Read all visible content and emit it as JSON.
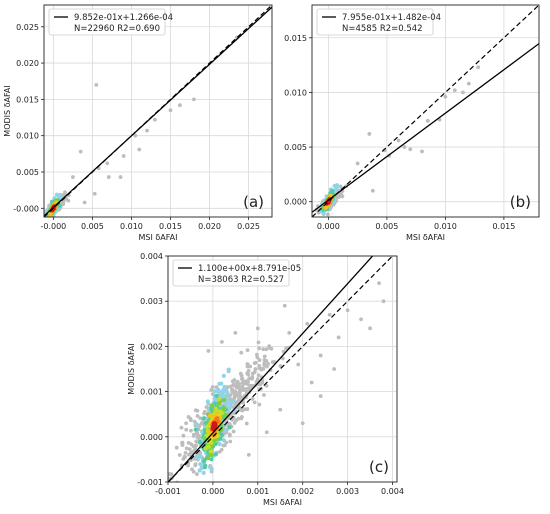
{
  "chart_data": [
    {
      "type": "scatter",
      "panel_label": "(a)",
      "xlabel": "MSI δAFAI",
      "ylabel": "MODIS δAFAI",
      "xlim": [
        -0.0012,
        0.028
      ],
      "ylim": [
        -0.0012,
        0.028
      ],
      "xticks": [
        "-0.000",
        "0.005",
        "0.010",
        "0.015",
        "0.020",
        "0.025"
      ],
      "xtick_values": [
        0.0,
        0.005,
        0.01,
        0.015,
        0.02,
        0.025
      ],
      "yticks": [
        "-0.000",
        "0.005",
        "0.010",
        "0.015",
        "0.020",
        "0.025"
      ],
      "ytick_values": [
        0.0,
        0.005,
        0.01,
        0.015,
        0.02,
        0.025
      ],
      "grid": true,
      "legend": {
        "position": "top-left",
        "line1": "9.852e-01x+1.266e-04",
        "line2": "N=22960  R2=0.690"
      },
      "fit": {
        "slope": 0.9852,
        "intercept": 0.0001266
      },
      "one_to_one": true,
      "sample_points": [
        [
          0.0053,
          0.002
        ],
        [
          0.0058,
          0.0055
        ],
        [
          0.0069,
          0.0062
        ],
        [
          0.0071,
          0.0043
        ],
        [
          0.0086,
          0.0043
        ],
        [
          0.009,
          0.0072
        ],
        [
          0.0105,
          0.01
        ],
        [
          0.011,
          0.0081
        ],
        [
          0.012,
          0.0107
        ],
        [
          0.013,
          0.0122
        ],
        [
          0.015,
          0.0135
        ],
        [
          0.0162,
          0.0142
        ],
        [
          0.018,
          0.015
        ],
        [
          0.0235,
          0.0235
        ],
        [
          0.0055,
          0.017
        ],
        [
          0.0035,
          0.0078
        ],
        [
          0.0025,
          0.0043
        ],
        [
          0.004,
          0.0008
        ]
      ]
    },
    {
      "type": "scatter",
      "panel_label": "(b)",
      "xlabel": "MSI δAFAI",
      "ylabel": "",
      "xlim": [
        -0.0014,
        0.018
      ],
      "ylim": [
        -0.0014,
        0.018
      ],
      "xticks": [
        "0.000",
        "0.005",
        "0.010",
        "0.015"
      ],
      "xtick_values": [
        0.0,
        0.005,
        0.01,
        0.015
      ],
      "yticks": [
        "0.000",
        "0.005",
        "0.010",
        "0.015"
      ],
      "ytick_values": [
        0.0,
        0.005,
        0.01,
        0.015
      ],
      "grid": true,
      "legend": {
        "position": "top-left",
        "line1": "7.955e-01x+1.482e-04",
        "line2": "N=4585  R2=0.542"
      },
      "fit": {
        "slope": 0.7955,
        "intercept": 0.0001482
      },
      "one_to_one": true,
      "sample_points": [
        [
          0.0048,
          0.0047
        ],
        [
          0.0052,
          0.0042
        ],
        [
          0.006,
          0.0056
        ],
        [
          0.0065,
          0.005
        ],
        [
          0.007,
          0.0048
        ],
        [
          0.008,
          0.0046
        ],
        [
          0.0085,
          0.0074
        ],
        [
          0.0095,
          0.0075
        ],
        [
          0.01,
          0.0096
        ],
        [
          0.0115,
          0.01
        ],
        [
          0.012,
          0.0108
        ],
        [
          0.0128,
          0.0123
        ],
        [
          0.0108,
          0.0102
        ],
        [
          0.0035,
          0.0062
        ],
        [
          0.0025,
          0.0035
        ],
        [
          0.0038,
          0.001
        ]
      ]
    },
    {
      "type": "scatter",
      "panel_label": "(c)",
      "xlabel": "MSI δAFAI",
      "ylabel": "MODIS δAFAI",
      "xlim": [
        -0.001,
        0.0041
      ],
      "ylim": [
        -0.001,
        0.004
      ],
      "xticks": [
        "-0.001",
        "0.000",
        "0.001",
        "0.002",
        "0.003",
        "0.004"
      ],
      "xtick_values": [
        -0.001,
        0.0,
        0.001,
        0.002,
        0.003,
        0.004
      ],
      "yticks": [
        "-0.001",
        "0.000",
        "0.001",
        "0.002",
        "0.003",
        "0.004"
      ],
      "ytick_values": [
        -0.001,
        0.0,
        0.001,
        0.002,
        0.003,
        0.004
      ],
      "grid": true,
      "legend": {
        "position": "top-left",
        "line1": "1.100e+00x+8.791e-05",
        "line2": "N=38063  R2=0.527"
      },
      "fit": {
        "slope": 1.1,
        "intercept": 8.791e-05
      },
      "one_to_one": true,
      "sample_points": [
        [
          0.0021,
          0.0025
        ],
        [
          0.0024,
          0.0018
        ],
        [
          0.0026,
          0.0027
        ],
        [
          0.0028,
          0.0022
        ],
        [
          0.003,
          0.0028
        ],
        [
          0.0033,
          0.0026
        ],
        [
          0.0037,
          0.0034
        ],
        [
          0.0038,
          0.003
        ],
        [
          0.0017,
          0.0023
        ],
        [
          0.0019,
          0.0016
        ],
        [
          0.0022,
          0.0012
        ],
        [
          0.0015,
          0.0006
        ],
        [
          0.0012,
          0.0001
        ],
        [
          0.0008,
          -0.0004
        ],
        [
          0.0016,
          0.0029
        ],
        [
          0.001,
          0.0024
        ],
        [
          0.0005,
          0.0023
        ],
        [
          0.0002,
          0.0021
        ],
        [
          -0.0001,
          0.0019
        ],
        [
          -0.0005,
          0.0004
        ],
        [
          -0.0007,
          0.0002
        ],
        [
          0.002,
          0.0003
        ],
        [
          0.0024,
          0.0009
        ],
        [
          0.0027,
          0.0015
        ],
        [
          0.0035,
          0.0024
        ]
      ]
    }
  ]
}
